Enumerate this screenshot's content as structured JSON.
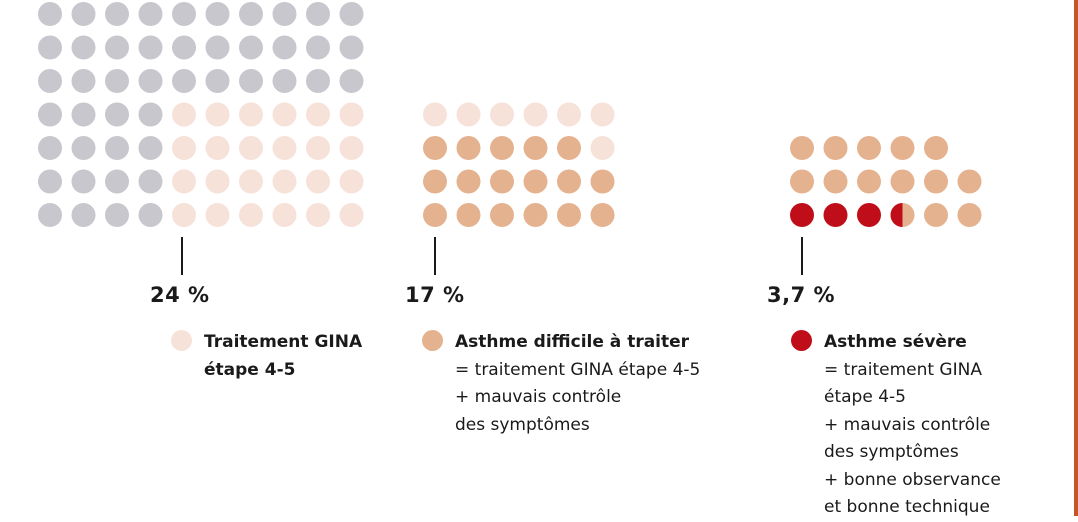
{
  "colors": {
    "grey": "#c7c7cd",
    "pale": "#f6e2d9",
    "peach": "#e5b28f",
    "red": "#c00d1a"
  },
  "chart_data": {
    "type": "waffle",
    "groups": [
      {
        "percent": "24 %",
        "legend_title_lines": [
          "Traitement GINA",
          "étape 4-5"
        ],
        "legend_body_lines": [],
        "swatch": "pale",
        "rows": [
          [
            "grey",
            "grey",
            "grey",
            "grey",
            "grey",
            "grey",
            "grey",
            "grey",
            "grey",
            "grey"
          ],
          [
            "grey",
            "grey",
            "grey",
            "grey",
            "grey",
            "grey",
            "grey",
            "grey",
            "grey",
            "grey"
          ],
          [
            "grey",
            "grey",
            "grey",
            "grey",
            "grey",
            "grey",
            "grey",
            "grey",
            "grey",
            "grey"
          ],
          [
            "grey",
            "grey",
            "grey",
            "grey",
            "pale",
            "pale",
            "pale",
            "pale",
            "pale",
            "pale"
          ],
          [
            "grey",
            "grey",
            "grey",
            "grey",
            "pale",
            "pale",
            "pale",
            "pale",
            "pale",
            "pale"
          ],
          [
            "grey",
            "grey",
            "grey",
            "grey",
            "pale",
            "pale",
            "pale",
            "pale",
            "pale",
            "pale"
          ],
          [
            "grey",
            "grey",
            "grey",
            "grey",
            "pale",
            "pale",
            "pale",
            "pale",
            "pale",
            "pale"
          ]
        ]
      },
      {
        "percent": "17 %",
        "legend_title_lines": [
          "Asthme difficile à traiter"
        ],
        "legend_body_lines": [
          "= traitement GINA étape 4-5",
          "+ mauvais contrôle",
          "des symptômes"
        ],
        "swatch": "peach",
        "rows": [
          [
            "pale",
            "pale",
            "pale",
            "pale",
            "pale",
            "pale"
          ],
          [
            "peach",
            "peach",
            "peach",
            "peach",
            "peach",
            "pale"
          ],
          [
            "peach",
            "peach",
            "peach",
            "peach",
            "peach",
            "peach"
          ],
          [
            "peach",
            "peach",
            "peach",
            "peach",
            "peach",
            "peach"
          ]
        ]
      },
      {
        "percent": "3,7 %",
        "legend_title_lines": [
          "Asthme sévère"
        ],
        "legend_body_lines": [
          "= traitement GINA",
          "étape 4-5",
          "+ mauvais contrôle",
          "des symptômes",
          "+ bonne observance",
          "et bonne technique"
        ],
        "swatch": "red",
        "rows": [
          [
            "peach",
            "peach",
            "peach",
            "peach",
            "peach"
          ],
          [
            "peach",
            "peach",
            "peach",
            "peach",
            "peach",
            "peach"
          ],
          [
            "red",
            "red",
            "red",
            "half",
            "peach",
            "peach"
          ]
        ]
      }
    ]
  }
}
